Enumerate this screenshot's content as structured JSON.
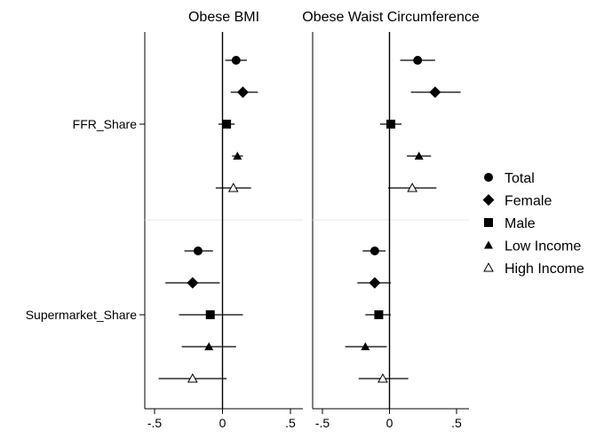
{
  "chart_data": {
    "type": "scatter",
    "title": "",
    "subtitle": "",
    "xlabel": "",
    "ylabel": "",
    "grid": false,
    "legend_position": "right",
    "legend_entries": [
      {
        "name": "Total",
        "marker": "circle"
      },
      {
        "name": "Female",
        "marker": "diamond"
      },
      {
        "name": "Male",
        "marker": "square"
      },
      {
        "name": "Low Income",
        "marker": "triangle"
      },
      {
        "name": "High Income",
        "marker": "triangle-open"
      }
    ],
    "categories": [
      "FFR_Share",
      "Supermarket_Share"
    ],
    "xlim": [
      -0.5,
      0.5
    ],
    "x_ticks": [
      -0.5,
      0,
      0.5
    ],
    "x_tick_labels": [
      "-.5",
      "0",
      ".5"
    ],
    "reference_line": 0,
    "panels": [
      {
        "title": "Obese BMI",
        "groups": [
          {
            "category": "FFR_Share",
            "series": [
              {
                "name": "Total",
                "estimate": 0.1,
                "ci": [
                  0.02,
                  0.18
                ]
              },
              {
                "name": "Female",
                "estimate": 0.15,
                "ci": [
                  0.06,
                  0.26
                ]
              },
              {
                "name": "Male",
                "estimate": 0.03,
                "ci": [
                  -0.03,
                  0.09
                ]
              },
              {
                "name": "Low Income",
                "estimate": 0.11,
                "ci": [
                  0.07,
                  0.15
                ]
              },
              {
                "name": "High Income",
                "estimate": 0.08,
                "ci": [
                  -0.05,
                  0.21
                ]
              }
            ]
          },
          {
            "category": "Supermarket_Share",
            "series": [
              {
                "name": "Total",
                "estimate": -0.18,
                "ci": [
                  -0.28,
                  -0.07
                ]
              },
              {
                "name": "Female",
                "estimate": -0.22,
                "ci": [
                  -0.42,
                  -0.02
                ]
              },
              {
                "name": "Male",
                "estimate": -0.09,
                "ci": [
                  -0.32,
                  0.15
                ]
              },
              {
                "name": "Low Income",
                "estimate": -0.1,
                "ci": [
                  -0.3,
                  0.1
                ]
              },
              {
                "name": "High Income",
                "estimate": -0.22,
                "ci": [
                  -0.47,
                  0.03
                ]
              }
            ]
          }
        ]
      },
      {
        "title": "Obese Waist Circumference",
        "groups": [
          {
            "category": "FFR_Share",
            "series": [
              {
                "name": "Total",
                "estimate": 0.21,
                "ci": [
                  0.08,
                  0.34
                ]
              },
              {
                "name": "Female",
                "estimate": 0.34,
                "ci": [
                  0.16,
                  0.53
                ]
              },
              {
                "name": "Male",
                "estimate": 0.01,
                "ci": [
                  -0.07,
                  0.09
                ]
              },
              {
                "name": "Low Income",
                "estimate": 0.22,
                "ci": [
                  0.13,
                  0.31
                ]
              },
              {
                "name": "High Income",
                "estimate": 0.17,
                "ci": [
                  -0.01,
                  0.35
                ]
              }
            ]
          },
          {
            "category": "Supermarket_Share",
            "series": [
              {
                "name": "Total",
                "estimate": -0.11,
                "ci": [
                  -0.2,
                  -0.03
                ]
              },
              {
                "name": "Female",
                "estimate": -0.11,
                "ci": [
                  -0.24,
                  0.01
                ]
              },
              {
                "name": "Male",
                "estimate": -0.08,
                "ci": [
                  -0.18,
                  0.01
                ]
              },
              {
                "name": "Low Income",
                "estimate": -0.18,
                "ci": [
                  -0.33,
                  -0.02
                ]
              },
              {
                "name": "High Income",
                "estimate": -0.05,
                "ci": [
                  -0.23,
                  0.14
                ]
              }
            ]
          }
        ]
      }
    ]
  }
}
